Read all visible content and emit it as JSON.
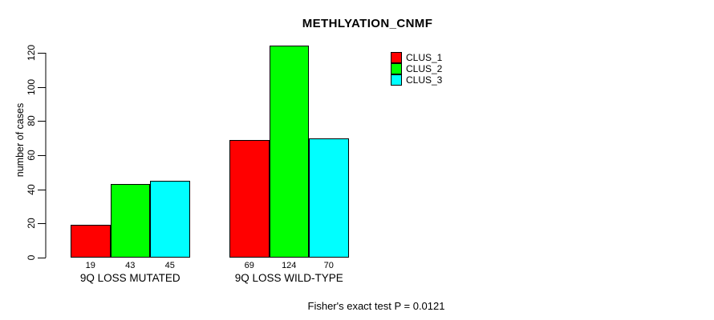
{
  "chart_data": {
    "type": "bar",
    "title": "METHLYATION_CNMF",
    "ylabel": "number of cases",
    "xlabel": "",
    "groups": [
      "9Q LOSS MUTATED",
      "9Q LOSS WILD-TYPE"
    ],
    "series": [
      {
        "name": "CLUS_1",
        "color": "#FF0000",
        "values": [
          19,
          69
        ]
      },
      {
        "name": "CLUS_2",
        "color": "#00FF00",
        "values": [
          43,
          124
        ]
      },
      {
        "name": "CLUS_3",
        "color": "#00FFFF",
        "values": [
          45,
          70
        ]
      }
    ],
    "y_ticks": [
      0,
      20,
      40,
      60,
      80,
      100,
      120
    ],
    "ylim": [
      0,
      130
    ],
    "grid": false,
    "legend_position": "top-right",
    "annotation": "Fisher's exact test P = 0.0121"
  }
}
